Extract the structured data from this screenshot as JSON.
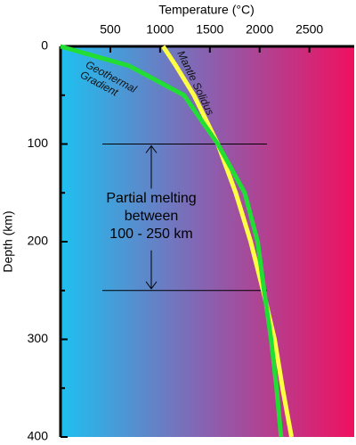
{
  "chart_data": {
    "type": "line",
    "title": "Temperature (°C)",
    "y_label": "Depth (km)",
    "xlim": [
      0,
      2950
    ],
    "xticks": [
      500,
      1000,
      1500,
      2000,
      2500
    ],
    "ylim": [
      0,
      400
    ],
    "yticks": [
      0,
      100,
      200,
      300,
      400
    ],
    "y_inverted": true,
    "series": [
      {
        "name": "Geothermal Gradient",
        "color": "#22dd33",
        "x": [
          0,
          690,
          1240,
          1580,
          1850,
          1980,
          2045,
          2115,
          2170,
          2215
        ],
        "y": [
          0,
          20,
          50,
          100,
          150,
          200,
          250,
          300,
          350,
          400
        ]
      },
      {
        "name": "Mantle Solidus",
        "color": "#ffff44",
        "x": [
          1030,
          1160,
          1340,
          1580,
          1760,
          1910,
          2035,
          2150,
          2230,
          2320
        ],
        "y": [
          0,
          20,
          50,
          100,
          150,
          200,
          250,
          300,
          350,
          400
        ]
      }
    ],
    "annotation": {
      "lines": [
        "Partial melting",
        "between",
        "100 - 250 km"
      ],
      "range": [
        100,
        250
      ]
    }
  }
}
